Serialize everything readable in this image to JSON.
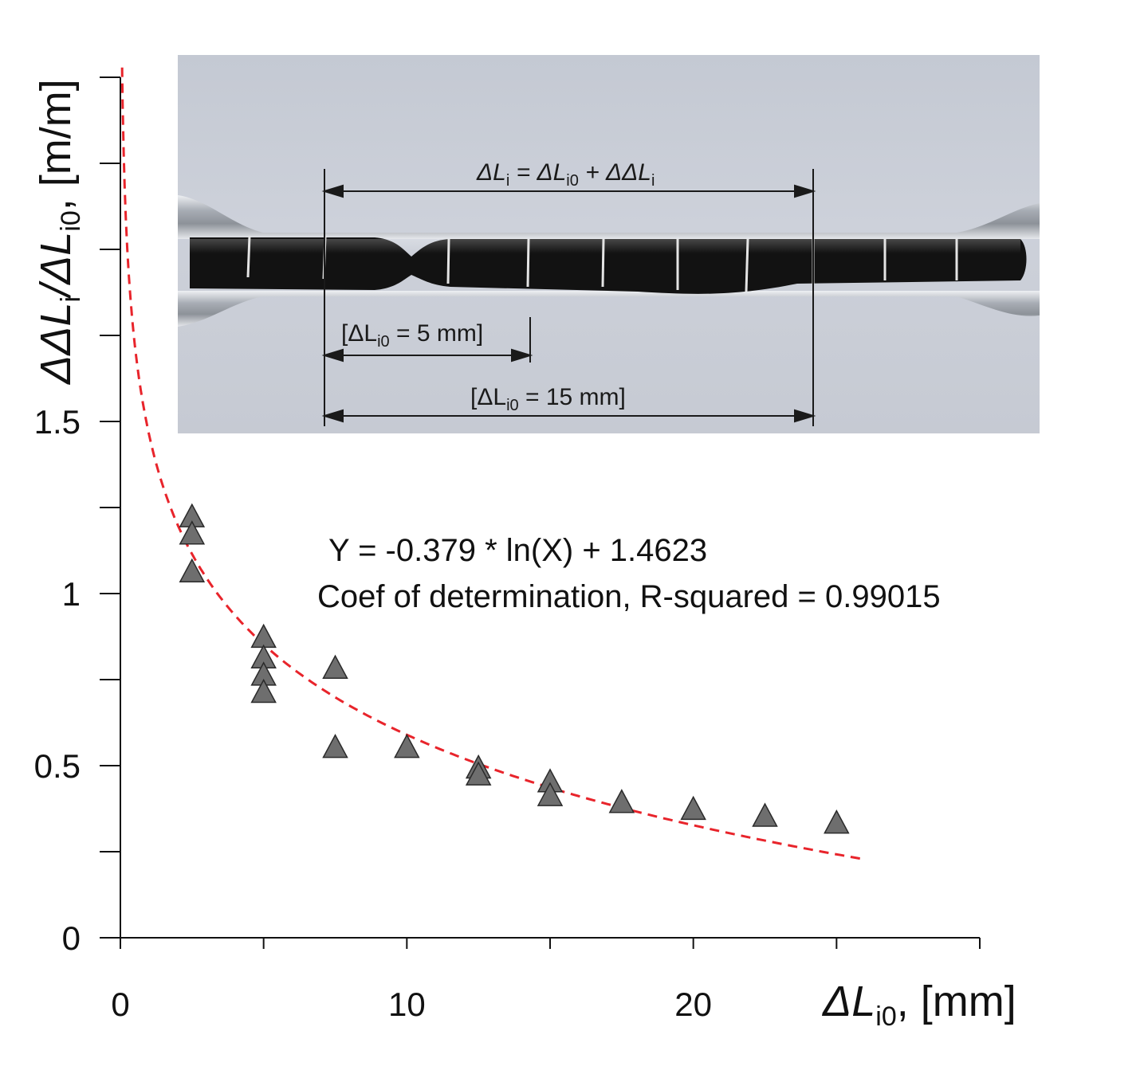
{
  "chart_data": {
    "type": "scatter",
    "title": "",
    "xlabel": {
      "prefix": "ΔL",
      "subscript": "i0",
      "suffix": ", [mm]"
    },
    "ylabel": {
      "part1": "ΔΔL",
      "sub1": "i",
      "part2": "/ΔL",
      "sub2": "i0",
      "suffix": ", [m/m]"
    },
    "xlim": [
      0,
      30
    ],
    "ylim": [
      0,
      2.5
    ],
    "x_ticks": [
      0,
      5,
      10,
      15,
      20,
      25,
      30
    ],
    "x_tick_labels": [
      {
        "value": 0,
        "label": "0"
      },
      {
        "value": 10,
        "label": "10"
      },
      {
        "value": 20,
        "label": "20"
      }
    ],
    "y_ticks": [
      0,
      0.25,
      0.5,
      0.75,
      1,
      1.25,
      1.5,
      1.75,
      2,
      2.25,
      2.5
    ],
    "y_tick_labels": [
      {
        "value": 0,
        "label": "0"
      },
      {
        "value": 0.5,
        "label": "0.5"
      },
      {
        "value": 1,
        "label": "1"
      },
      {
        "value": 1.5,
        "label": "1.5"
      }
    ],
    "grid": false,
    "series": [
      {
        "marker": "triangle",
        "color": "#6e6e6e",
        "points": [
          [
            2.5,
            1.22
          ],
          [
            2.5,
            1.17
          ],
          [
            2.5,
            1.06
          ],
          [
            5,
            0.87
          ],
          [
            5,
            0.81
          ],
          [
            5,
            0.76
          ],
          [
            5,
            0.71
          ],
          [
            7.5,
            0.78
          ],
          [
            7.5,
            0.55
          ],
          [
            10,
            0.55
          ],
          [
            12.5,
            0.49
          ],
          [
            12.5,
            0.47
          ],
          [
            15,
            0.45
          ],
          [
            15,
            0.41
          ],
          [
            17.5,
            0.39
          ],
          [
            20,
            0.37
          ],
          [
            22.5,
            0.35
          ],
          [
            25,
            0.33
          ]
        ]
      },
      {
        "type": "line",
        "style": "dashed",
        "color": "#e8242b",
        "fit": {
          "a": -0.379,
          "b": 1.4623,
          "x_start": 0.06,
          "x_end": 26
        }
      }
    ],
    "annotations": {
      "equation": "Y = -0.379 * ln(X) + 1.4623",
      "r_squared": "Coef of determination, R-squared = 0.99015"
    },
    "inset": {
      "type": "photo",
      "background": "#c9ced8",
      "labels": [
        {
          "key": "top",
          "parts": [
            "ΔL",
            "i",
            " = ΔL",
            "i0",
            " + ΔΔL",
            "i"
          ]
        },
        {
          "key": "mid",
          "parts": [
            "[ΔL",
            "i0",
            " = 5 mm]"
          ]
        },
        {
          "key": "bottom",
          "parts": [
            "[ΔL",
            "i0",
            " = 15 mm]"
          ]
        }
      ]
    }
  }
}
